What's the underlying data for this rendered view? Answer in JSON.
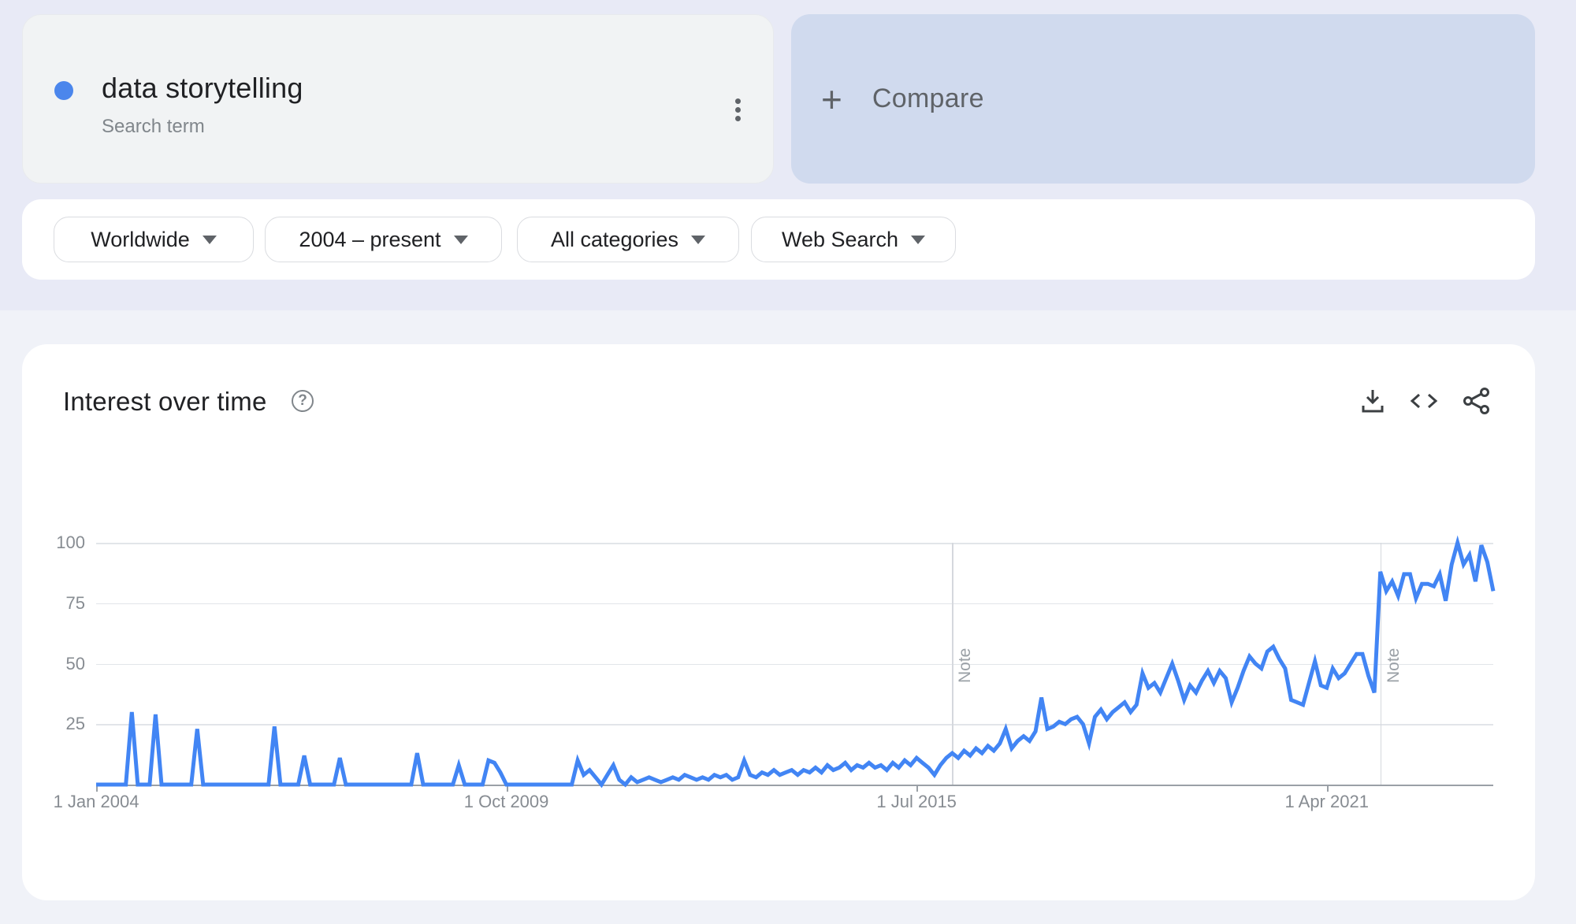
{
  "term_card": {
    "term": "data storytelling",
    "type_label": "Search term",
    "dot_color": "#4b86ec"
  },
  "compare_card": {
    "plus_glyph": "+",
    "label": "Compare"
  },
  "filters": [
    {
      "label": "Worldwide"
    },
    {
      "label": "2004 – present"
    },
    {
      "label": "All categories"
    },
    {
      "label": "Web Search"
    }
  ],
  "chart_header": {
    "title": "Interest over time",
    "help_glyph": "?"
  },
  "chart_data": {
    "type": "line",
    "title": "Interest over time",
    "series_name": "data storytelling",
    "line_color": "#4285f4",
    "x_start": "Jan 2004",
    "x_end": "Aug 2023",
    "x_tick_labels": [
      "1 Jan 2004",
      "1 Oct 2009",
      "1 Jul 2015",
      "1 Apr 2021"
    ],
    "x_tick_month_index": [
      0,
      69,
      138,
      207
    ],
    "y_ticks": [
      25,
      50,
      75,
      100
    ],
    "ylim": [
      0,
      100
    ],
    "note_label": "Note",
    "note_month_index": [
      144,
      216
    ],
    "legend_position": "none",
    "grid": true,
    "values": [
      0,
      0,
      0,
      0,
      0,
      0,
      30,
      0,
      0,
      0,
      29,
      0,
      0,
      0,
      0,
      0,
      0,
      23,
      0,
      0,
      0,
      0,
      0,
      0,
      0,
      0,
      0,
      0,
      0,
      0,
      24,
      0,
      0,
      0,
      0,
      12,
      0,
      0,
      0,
      0,
      0,
      11,
      0,
      0,
      0,
      0,
      0,
      0,
      0,
      0,
      0,
      0,
      0,
      0,
      13,
      0,
      0,
      0,
      0,
      0,
      0,
      8,
      0,
      0,
      0,
      0,
      10,
      9,
      5,
      0,
      0,
      0,
      0,
      0,
      0,
      0,
      0,
      0,
      0,
      0,
      0,
      10,
      4,
      6,
      3,
      0,
      4,
      8,
      2,
      0,
      3,
      1,
      2,
      3,
      2,
      1,
      2,
      3,
      2,
      4,
      3,
      2,
      3,
      2,
      4,
      3,
      4,
      2,
      3,
      10,
      4,
      3,
      5,
      4,
      6,
      4,
      5,
      6,
      4,
      6,
      5,
      7,
      5,
      8,
      6,
      7,
      9,
      6,
      8,
      7,
      9,
      7,
      8,
      6,
      9,
      7,
      10,
      8,
      11,
      9,
      7,
      4,
      8,
      11,
      13,
      11,
      14,
      12,
      15,
      13,
      16,
      14,
      17,
      23,
      15,
      18,
      20,
      18,
      22,
      36,
      23,
      24,
      26,
      25,
      27,
      28,
      25,
      17,
      28,
      31,
      27,
      30,
      32,
      34,
      30,
      33,
      46,
      40,
      42,
      38,
      44,
      50,
      43,
      35,
      41,
      38,
      43,
      47,
      42,
      47,
      44,
      34,
      40,
      47,
      53,
      50,
      48,
      55,
      57,
      52,
      48,
      35,
      34,
      33,
      42,
      51,
      41,
      40,
      48,
      44,
      46,
      50,
      54,
      54,
      45,
      38,
      88,
      80,
      84,
      78,
      87,
      87,
      77,
      83,
      83,
      82,
      87,
      76,
      91,
      100,
      91,
      95,
      84,
      99,
      92,
      80
    ]
  }
}
